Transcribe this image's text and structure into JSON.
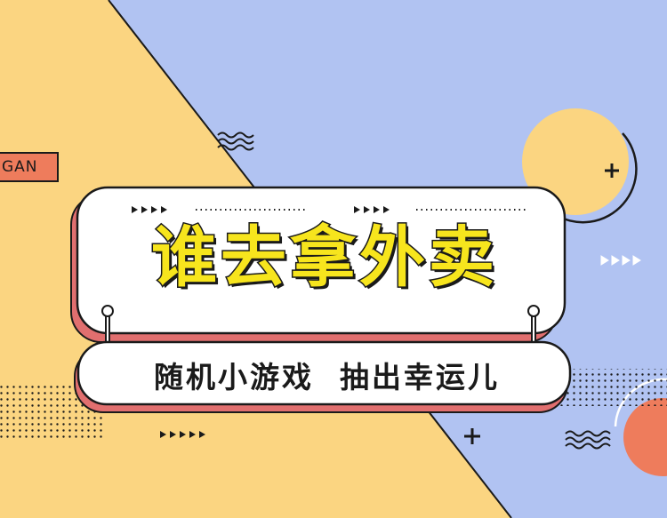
{
  "banner": {
    "title": "谁去拿外卖",
    "subtitle": "随机小游戏  抽出幸运儿",
    "slogan_tag": "GAN"
  },
  "colors": {
    "background_yellow": "#fbd581",
    "background_blue": "#b1c3f2",
    "title_fill": "#f7e51d",
    "outline": "#1a1a1a",
    "card_shadow": "#e16f6f",
    "coral_circle": "#ee7c5c",
    "yellow_circle": "#fbd581"
  },
  "icons": [
    "arrow-triangles-icon",
    "plus-icon",
    "wave-icon",
    "dot-grid-icon"
  ]
}
